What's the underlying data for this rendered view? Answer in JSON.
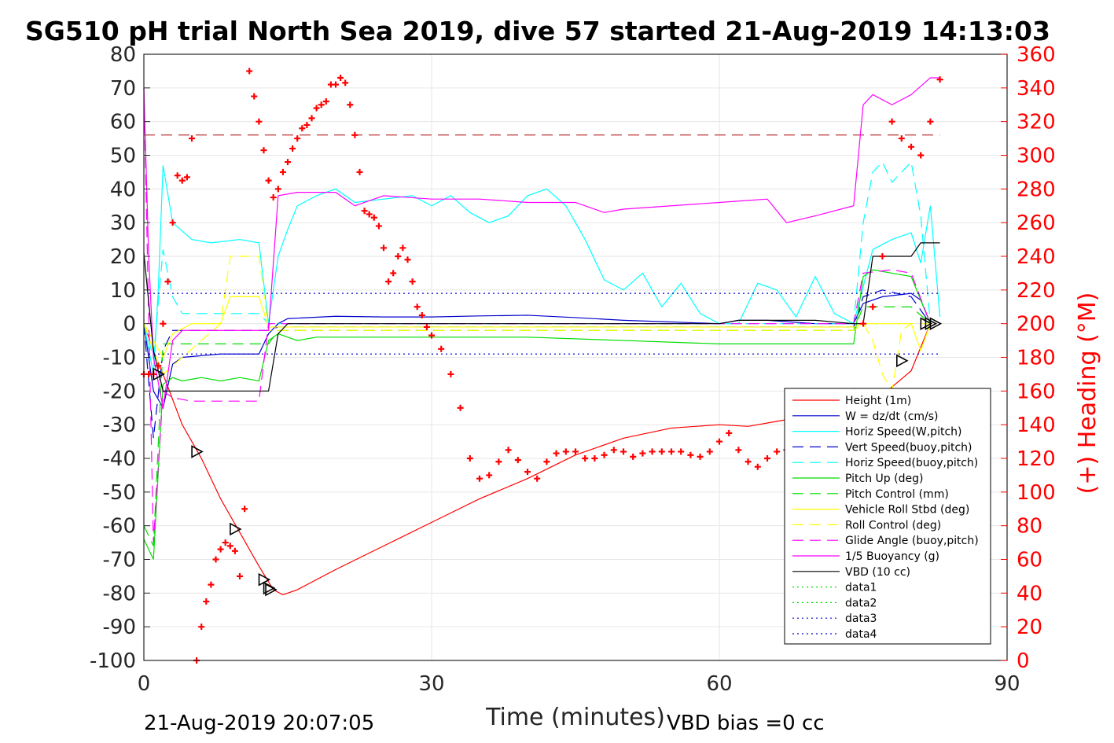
{
  "chart_data": {
    "type": "line",
    "title": "SG510 pH trial North Sea 2019, dive 57 started 21-Aug-2019 14:13:03",
    "xlabel": "Time (minutes)",
    "ylabel": "",
    "y2label": "(+) Heading (°M)",
    "xlim": [
      0,
      90
    ],
    "ylim": [
      -100,
      80
    ],
    "y2lim": [
      0,
      360
    ],
    "x_ticks": [
      "0",
      "30",
      "60",
      "90"
    ],
    "y_ticks": [
      "80",
      "70",
      "60",
      "50",
      "40",
      "30",
      "20",
      "10",
      "0",
      "-10",
      "-20",
      "-30",
      "-40",
      "-50",
      "-60",
      "-70",
      "-80",
      "-90",
      "-100"
    ],
    "y2_ticks": [
      "360",
      "340",
      "320",
      "300",
      "280",
      "260",
      "240",
      "220",
      "200",
      "180",
      "160",
      "140",
      "120",
      "100",
      "80",
      "60",
      "40",
      "20",
      "0"
    ],
    "footer_left": "21-Aug-2019 20:07:05",
    "footer_right": "VBD bias =0 cc",
    "grid": true,
    "legend_position": "bottom-right",
    "colors": {
      "red": "#ff0000",
      "blue": "#0000cc",
      "cyan": "#00ffff",
      "green": "#00dd00",
      "yellow": "#ffff00",
      "magenta": "#ff00ff",
      "black": "#000000",
      "darkred": "#aa0000"
    },
    "series": [
      {
        "name": "Height (1m)",
        "color": "#ff0000",
        "style": "solid",
        "x": [
          0,
          1,
          2,
          4,
          6,
          8,
          10,
          12,
          13.5,
          14.5,
          16,
          20,
          25,
          30,
          35,
          40,
          45,
          50,
          55,
          60,
          63,
          66,
          70,
          75,
          80,
          82
        ],
        "y": [
          0,
          -8,
          -15,
          -30,
          -40,
          -52,
          -62,
          -72,
          -79,
          -80.5,
          -79,
          -73,
          -66,
          -59,
          -52,
          -46,
          -39,
          -34,
          -31,
          -30,
          -30.5,
          -29,
          -27,
          -26,
          -14,
          0
        ]
      },
      {
        "name": "W = dz/dt (cm/s)",
        "color": "#0000cc",
        "style": "solid",
        "x": [
          0,
          1,
          2,
          3,
          4,
          8,
          12,
          13,
          14,
          15,
          20,
          25,
          30,
          35,
          40,
          45,
          50,
          55,
          60,
          62,
          65,
          70,
          74,
          75,
          77,
          80,
          81,
          82
        ],
        "y": [
          0,
          -20,
          -25,
          -12,
          -10,
          -9,
          -9,
          -3,
          0,
          1.5,
          2.2,
          2,
          2,
          2.3,
          2.5,
          1.8,
          1,
          0.5,
          0,
          1,
          1,
          0,
          0,
          6,
          8,
          9,
          7,
          0
        ]
      },
      {
        "name": "Horiz Speed(W,pitch)",
        "color": "#00ffff",
        "style": "solid",
        "x": [
          0,
          1,
          1.5,
          2,
          3,
          5,
          7,
          10,
          12,
          13,
          14,
          15,
          16,
          18,
          20,
          22,
          25,
          28,
          30,
          32,
          34,
          36,
          38,
          40,
          42,
          44,
          46,
          48,
          50,
          52,
          54,
          56,
          58,
          60,
          62,
          64,
          66,
          68,
          70,
          72,
          74,
          76,
          78,
          80,
          81,
          82,
          83
        ],
        "y": [
          0,
          -15,
          10,
          47,
          30,
          25,
          24,
          25,
          24,
          0,
          20,
          28,
          35,
          38,
          40,
          36,
          37,
          38,
          35,
          38,
          33,
          30,
          32,
          38,
          40,
          35,
          25,
          13,
          10,
          15,
          5,
          12,
          3,
          0,
          0,
          12,
          10,
          2,
          14,
          3,
          0,
          22,
          25,
          27,
          18,
          35,
          2
        ]
      },
      {
        "name": "Vert Speed(buoy,pitch)",
        "color": "#0000cc",
        "style": "dashed",
        "x": [
          0,
          1,
          2,
          3,
          13,
          14,
          74,
          75,
          77,
          80,
          82
        ],
        "y": [
          0,
          -34,
          -8,
          -2,
          -2,
          -1,
          -1,
          8,
          10,
          8,
          0
        ]
      },
      {
        "name": "Horiz Speed(buoy,pitch)",
        "color": "#00ffff",
        "style": "dashed",
        "x": [
          0,
          1,
          2,
          3,
          4,
          6,
          8,
          10,
          12,
          13,
          14,
          74,
          75,
          76,
          77,
          78,
          80,
          81,
          82
        ],
        "y": [
          0,
          -10,
          22,
          8,
          3,
          3,
          3,
          3,
          3,
          0,
          0,
          0,
          30,
          45,
          48,
          42,
          48,
          32,
          0
        ]
      },
      {
        "name": "Pitch Up (deg)",
        "color": "#00dd00",
        "style": "solid",
        "x": [
          0,
          1,
          2,
          3,
          4,
          6,
          8,
          10,
          12,
          13,
          14,
          16,
          18,
          20,
          30,
          40,
          50,
          60,
          70,
          74,
          75,
          76,
          78,
          80,
          82
        ],
        "y": [
          -64,
          -70,
          -18,
          -16,
          -17,
          -16,
          -17,
          -16,
          -17,
          -5,
          -3,
          -5,
          -4,
          -4,
          -4,
          -4,
          -5,
          -6,
          -6,
          -6,
          14,
          16,
          15,
          14,
          0
        ]
      },
      {
        "name": "Pitch Control (mm)",
        "color": "#00dd00",
        "style": "dashed",
        "x": [
          0,
          1,
          2,
          3,
          13,
          14,
          74,
          75,
          80,
          82
        ],
        "y": [
          -60,
          -66,
          -6,
          -6,
          -6,
          -2,
          -2,
          5,
          5,
          0
        ]
      },
      {
        "name": "Vehicle Roll Stbd (deg)",
        "color": "#ffff00",
        "style": "solid",
        "x": [
          0,
          1,
          2,
          3,
          5,
          6,
          8,
          9,
          12,
          13,
          14,
          74,
          75,
          76,
          78,
          80,
          81,
          82
        ],
        "y": [
          0,
          -5,
          -10,
          -3,
          0,
          0,
          0,
          8,
          8,
          -1,
          -1,
          -1,
          0,
          0,
          0,
          0,
          -8,
          0
        ]
      },
      {
        "name": "Roll Control (deg)",
        "color": "#ffff00",
        "style": "dashed",
        "x": [
          0,
          1,
          2,
          8,
          9,
          12,
          13,
          14,
          74,
          75,
          76,
          77,
          78,
          79,
          80,
          82
        ],
        "y": [
          0,
          -8,
          -15,
          0,
          20,
          20,
          -2,
          -2,
          -2,
          0,
          -5,
          -15,
          -20,
          -2,
          0,
          0
        ]
      },
      {
        "name": "Glide Angle (buoy,pitch)",
        "color": "#ff00ff",
        "style": "dashed",
        "x": [
          0,
          1,
          2,
          3,
          5,
          8,
          12,
          13,
          14,
          74,
          75,
          78,
          80,
          82
        ],
        "y": [
          70,
          -65,
          -20,
          -22,
          -23,
          -23,
          -23,
          0,
          0,
          0,
          15,
          16,
          15,
          0
        ]
      },
      {
        "name": "1/5 Buoyancy (g)",
        "color": "#ff00ff",
        "style": "solid",
        "x": [
          0,
          0.5,
          1,
          2,
          3,
          4,
          13,
          14,
          16,
          20,
          22,
          25,
          30,
          35,
          40,
          45,
          48,
          50,
          55,
          60,
          65,
          67,
          70,
          74,
          75,
          76,
          78,
          80,
          82,
          83
        ],
        "y": [
          70,
          20,
          -10,
          -25,
          -5,
          -2,
          -2,
          38,
          39,
          39,
          35,
          38,
          37,
          37,
          36,
          36,
          33,
          34,
          35,
          36,
          37,
          30,
          32,
          35,
          65,
          68,
          65,
          68,
          73,
          73
        ]
      },
      {
        "name": "VBD (10 cc)",
        "color": "#000000",
        "style": "solid",
        "x": [
          0,
          1,
          2,
          13,
          14,
          15,
          60,
          62,
          70,
          74,
          75,
          76,
          80,
          81,
          82,
          83
        ],
        "y": [
          21,
          -8,
          -20,
          -20,
          -3,
          0,
          0,
          1,
          1,
          0,
          0,
          20,
          20,
          24,
          24,
          24
        ]
      },
      {
        "name": "data1",
        "color": "#00dd00",
        "style": "dotted",
        "x": [],
        "y": []
      },
      {
        "name": "data2",
        "color": "#00dd00",
        "style": "dotted",
        "x": [],
        "y": []
      },
      {
        "name": "data3",
        "color": "#0000cc",
        "style": "dotted",
        "x": [
          0,
          83
        ],
        "y": [
          9,
          9
        ]
      },
      {
        "name": "data4",
        "color": "#0000cc",
        "style": "dotted",
        "x": [
          0,
          83
        ],
        "y": [
          -9,
          -9
        ]
      }
    ],
    "ref_line": {
      "color": "#aa0000",
      "style": "dashed",
      "x": [
        0,
        83
      ],
      "y": [
        56,
        56
      ]
    },
    "heading": {
      "axis": "right",
      "color": "#ff0000",
      "marker": "+",
      "x": [
        0,
        0.5,
        1,
        1.5,
        2,
        2.5,
        3,
        3.5,
        4,
        4.5,
        5,
        5.5,
        6,
        6.5,
        7,
        7.5,
        8,
        8.5,
        9,
        9.5,
        10,
        10.5,
        11,
        11.5,
        12,
        12.5,
        13,
        13.5,
        14,
        14.5,
        15,
        15.5,
        16,
        16.5,
        17,
        17.5,
        18,
        18.5,
        19,
        19.5,
        20,
        20.5,
        21,
        21.5,
        22,
        22.5,
        23,
        23.5,
        24,
        24.5,
        25,
        25.5,
        26,
        26.5,
        27,
        27.5,
        28,
        28.5,
        29,
        29.5,
        30,
        31,
        32,
        33,
        34,
        35,
        36,
        37,
        38,
        39,
        40,
        41,
        42,
        43,
        44,
        45,
        46,
        47,
        48,
        49,
        50,
        51,
        52,
        53,
        54,
        55,
        56,
        57,
        58,
        59,
        60,
        61,
        62,
        63,
        64,
        65,
        66,
        67,
        68,
        69,
        70,
        71,
        72,
        73,
        74,
        75,
        76,
        77,
        78,
        79,
        80,
        81,
        82,
        83
      ],
      "y": [
        170,
        170,
        170,
        175,
        200,
        225,
        260,
        288,
        285,
        287,
        310,
        0,
        20,
        35,
        45,
        60,
        66,
        70,
        68,
        65,
        50,
        90,
        350,
        335,
        320,
        303,
        285,
        275,
        280,
        290,
        296,
        304,
        310,
        316,
        318,
        322,
        328,
        330,
        332,
        342,
        342,
        346,
        343,
        330,
        312,
        290,
        267,
        265,
        263,
        258,
        245,
        225,
        230,
        240,
        245,
        238,
        225,
        210,
        205,
        198,
        193,
        185,
        170,
        150,
        120,
        108,
        110,
        118,
        125,
        119,
        112,
        108,
        118,
        123,
        124,
        124,
        120,
        120,
        122,
        125,
        124,
        121,
        123,
        124,
        124,
        124,
        124,
        122,
        121,
        124,
        130,
        135,
        125,
        118,
        115,
        120,
        124,
        125,
        126,
        127,
        128,
        128,
        130,
        140,
        160,
        200,
        210,
        240,
        320,
        310,
        305,
        300,
        320,
        345
      ]
    },
    "markers": {
      "style": "triangle",
      "color": "#000000",
      "points": [
        [
          1.5,
          -15
        ],
        [
          5.5,
          -38
        ],
        [
          9.5,
          -61
        ],
        [
          12.5,
          -76
        ],
        [
          13,
          -78.5
        ],
        [
          13.2,
          -79
        ],
        [
          79,
          -11
        ],
        [
          81.5,
          0
        ],
        [
          82,
          0
        ],
        [
          82.5,
          0
        ]
      ]
    }
  }
}
